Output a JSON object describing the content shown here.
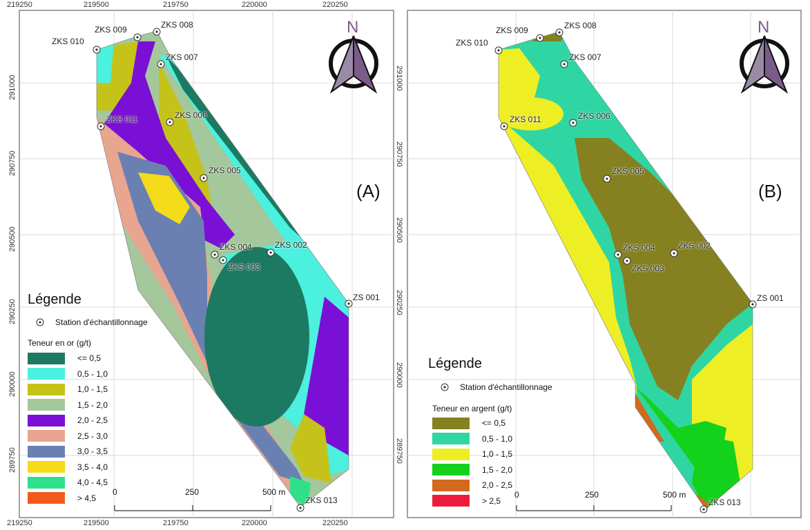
{
  "x_ticks": [
    "219250",
    "219500",
    "219750",
    "220000",
    "220250"
  ],
  "y_ticks": [
    "291000",
    "290750",
    "290500",
    "290250",
    "290000",
    "289750"
  ],
  "north_label": "N",
  "scale_labels": [
    "0",
    "250",
    "500 m"
  ],
  "panel_a": {
    "label": "(A)",
    "legend_title": "Légende",
    "station_label": "Station d'échantillonnage",
    "content_label": "Teneur en or (g/t)",
    "classes": [
      {
        "label": "<= 0,5",
        "color": "#1d7a62"
      },
      {
        "label": "0,5 - 1,0",
        "color": "#4cf0de"
      },
      {
        "label": "1,0 - 1,5",
        "color": "#c5c21a"
      },
      {
        "label": "1,5 - 2,0",
        "color": "#a4c79b"
      },
      {
        "label": "2,0 - 2,5",
        "color": "#7a0fd6"
      },
      {
        "label": "2,5 - 3,0",
        "color": "#e8a58f"
      },
      {
        "label": "3,0 - 3,5",
        "color": "#6b80b2"
      },
      {
        "label": "3,5 - 4,0",
        "color": "#f4dc1a"
      },
      {
        "label": "4,0 - 4,5",
        "color": "#2ee08a"
      },
      {
        "label": "> 4,5",
        "color": "#f25a1c"
      }
    ],
    "stations": [
      "ZKS 010",
      "ZKS 009",
      "ZKS 008",
      "ZKS 007",
      "ZKS 006",
      "ZKS 011",
      "ZKS 005",
      "ZKS 004",
      "ZKS 002",
      "ZKS 003",
      "ZS 001",
      "ZKS 013"
    ]
  },
  "panel_b": {
    "label": "(B)",
    "legend_title": "Légende",
    "station_label": "Station d'échantillonnage",
    "content_label": "Teneur en argent (g/t)",
    "classes": [
      {
        "label": "<= 0,5",
        "color": "#858120"
      },
      {
        "label": "0,5 - 1,0",
        "color": "#2fd6a4"
      },
      {
        "label": "1,0 - 1,5",
        "color": "#eeee24"
      },
      {
        "label": "1,5 - 2,0",
        "color": "#14d11c"
      },
      {
        "label": "2,0 - 2,5",
        "color": "#d2691e"
      },
      {
        "label": "> 2,5",
        "color": "#ee1c3c"
      }
    ],
    "stations": [
      "ZKS 009",
      "ZKS 008",
      "ZKS 010",
      "ZKS 007",
      "ZKS 011",
      "ZKS 006",
      "ZKS 005",
      "ZKS 004",
      "ZKS 002",
      "ZKS 003",
      "ZS 001",
      "ZKS 013"
    ]
  }
}
